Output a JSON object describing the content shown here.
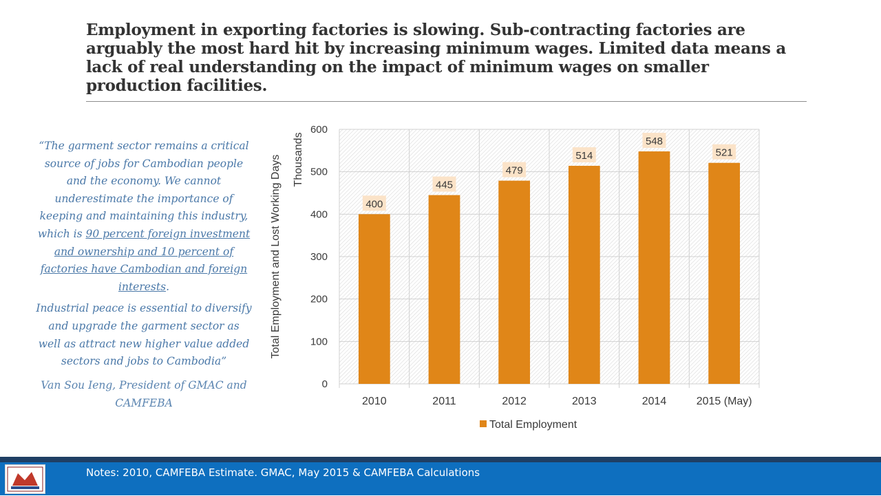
{
  "slide": {
    "title": "Employment in exporting factories is slowing. Sub-contracting factories are arguably the most hard hit by increasing minimum wages.  Limited data means a lack of real understanding on the impact of minimum wages on smaller production facilities."
  },
  "quote": {
    "intro": "“The garment sector remains a critical source of jobs for Cambodian people and the economy.  We cannot underestimate the importance of keeping and maintaining this industry, which is ",
    "link_text": "90 percent foreign investment and ownership and 10 percent of factories have Cambodian and foreign interests",
    "intro_end": ".",
    "second": "Industrial peace is essential to diversify and upgrade the garment sector as well as attract new higher value added sectors and jobs to Cambodia”",
    "author": "Van Sou Ieng, President of GMAC and CAMFEBA"
  },
  "footer": {
    "notes": "Notes:  2010, CAMFEBA Estimate.  GMAC, May 2015 & CAMFEBA Calculations"
  },
  "colors": {
    "bar": "#e08618",
    "label_bg": "#fbe3c8",
    "quote_text": "#4a78a8",
    "footer": "#0e6fbf",
    "footer_band": "#1f3f64"
  },
  "chart_data": {
    "type": "bar",
    "categories": [
      "2010",
      "2011",
      "2012",
      "2013",
      "2014",
      "2015 (May)"
    ],
    "series": [
      {
        "name": "Total Employment",
        "values": [
          400,
          445,
          479,
          514,
          548,
          521
        ]
      }
    ],
    "ylabel": "Total Employment and Lost Working Days",
    "yunit": "Thousands",
    "ylim": [
      0,
      600
    ],
    "yticks": [
      0,
      100,
      200,
      300,
      400,
      500,
      600
    ],
    "grid": true,
    "legend": "bottom"
  }
}
